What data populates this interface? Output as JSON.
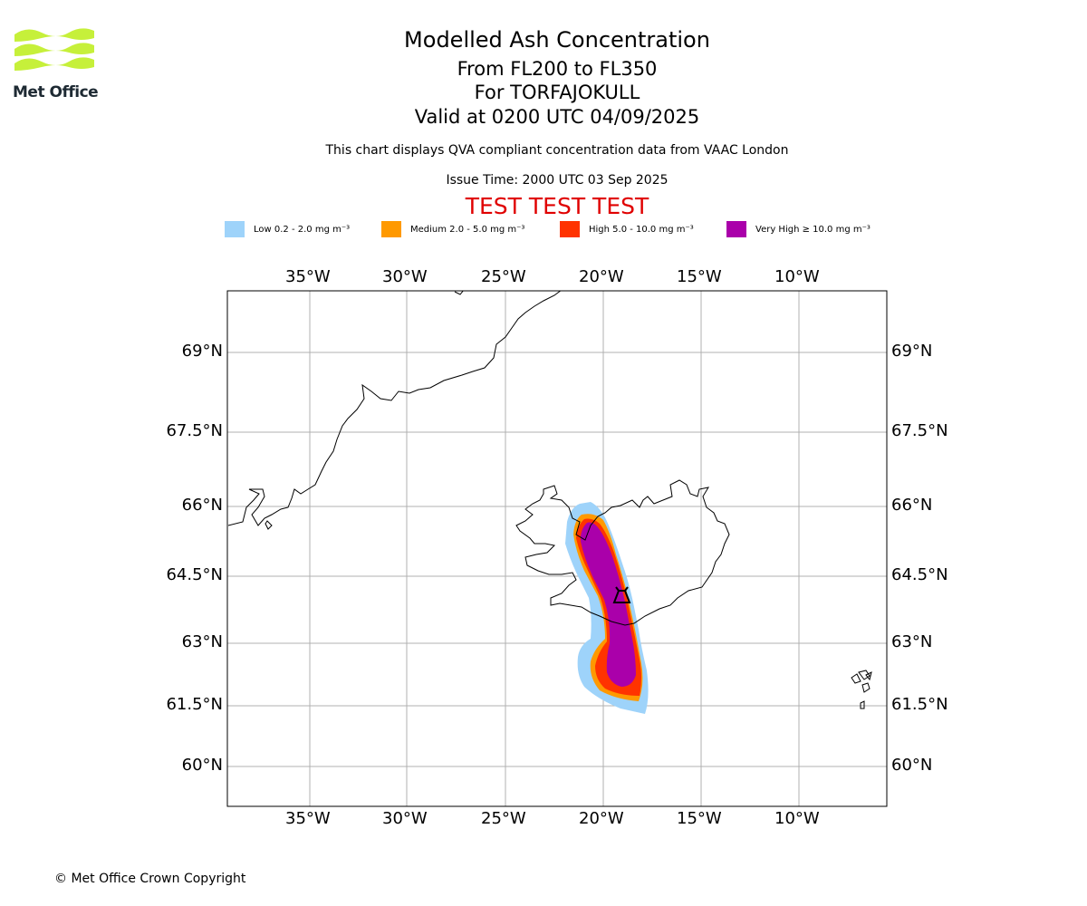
{
  "header": {
    "title": "Modelled Ash Concentration",
    "levels": "From FL200 to FL350",
    "volcano": "For TORFAJOKULL",
    "valid": "Valid at 0200 UTC 04/09/2025",
    "description": "This chart displays QVA compliant concentration data from VAAC London",
    "issue_time": "Issue Time: 2000 UTC 03 Sep 2025",
    "test_banner": "TEST TEST TEST"
  },
  "logo": {
    "text": "Met Office",
    "colors": [
      "#c6f03a"
    ]
  },
  "legend": [
    {
      "label": "Low 0.2 - 2.0 mg m⁻³",
      "color": "#9ed3fa"
    },
    {
      "label": "Medium 2.0 - 5.0 mg m⁻³",
      "color": "#ff9900"
    },
    {
      "label": "High 5.0 - 10.0 mg m⁻³",
      "color": "#ff3300"
    },
    {
      "label": "Very High  ≥  10.0 mg m⁻³",
      "color": "#aa00aa"
    }
  ],
  "map": {
    "lon_ticks": [
      "35°W",
      "30°W",
      "25°W",
      "20°W",
      "15°W",
      "10°W"
    ],
    "lat_ticks": [
      "69°N",
      "67.5°N",
      "66°N",
      "64.5°N",
      "63°N",
      "61.5°N",
      "60°N"
    ],
    "volcano_icon": "volcano-icon"
  },
  "footer": {
    "copyright": "© Met Office Crown Copyright"
  }
}
